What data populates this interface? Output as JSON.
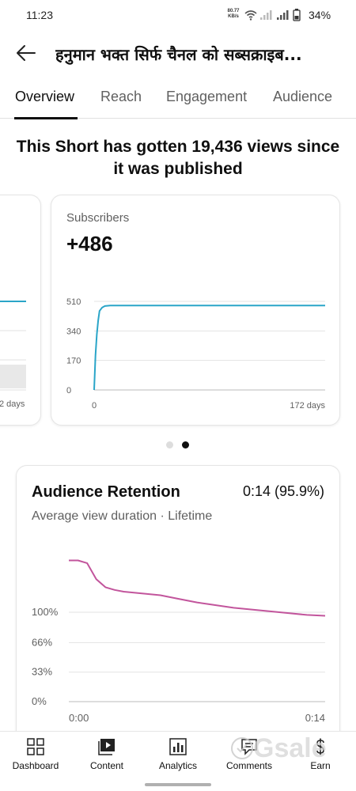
{
  "status_bar": {
    "time": "11:23",
    "net_speed_value": "80.77",
    "net_speed_unit": "KB/s",
    "battery": "34%"
  },
  "header": {
    "title": "हनुमान भक्त सिर्फ चैनल को सब्सक्राइब..."
  },
  "tabs": [
    {
      "label": "Overview",
      "active": true
    },
    {
      "label": "Reach",
      "active": false
    },
    {
      "label": "Engagement",
      "active": false
    },
    {
      "label": "Audience",
      "active": false
    }
  ],
  "headline": "This Short has gotten 19,436 views since it was published",
  "left_card": {
    "x_end_label": "2 days"
  },
  "subscribers_card": {
    "label": "Subscribers",
    "value": "+486",
    "chart_data": {
      "type": "line",
      "series": [
        {
          "values_x_days": [
            0,
            1,
            2,
            3,
            4,
            6,
            8,
            12,
            20,
            40,
            80,
            120,
            172
          ],
          "values_y": [
            0,
            200,
            320,
            400,
            455,
            475,
            483,
            486,
            486,
            486,
            486,
            486,
            486
          ]
        }
      ],
      "y_ticks": [
        "0",
        "170",
        "340",
        "510"
      ],
      "x_tick_start": "0",
      "x_tick_end": "172 days",
      "ylim": [
        0,
        510
      ],
      "xlim": [
        0,
        172
      ],
      "color": "#2aa5c8"
    }
  },
  "pager": {
    "count": 2,
    "active_index": 1
  },
  "retention_card": {
    "title": "Audience Retention",
    "value": "0:14 (95.9%)",
    "subtitle": "Average view duration · Lifetime",
    "chart_data": {
      "type": "line",
      "x": [
        0,
        0.5,
        1,
        1.5,
        2,
        2.5,
        3,
        4,
        5,
        6,
        7,
        8,
        9,
        10,
        11,
        12,
        13,
        14
      ],
      "y_percent": [
        158,
        158,
        155,
        137,
        128,
        125,
        123,
        121,
        119,
        115,
        111,
        108,
        105,
        103,
        101,
        99,
        97,
        96
      ],
      "y_ticks": [
        "0%",
        "33%",
        "66%",
        "100%"
      ],
      "x_tick_start": "0:00",
      "x_tick_end": "0:14",
      "ylim": [
        0,
        160
      ],
      "xlim": [
        0,
        14
      ],
      "color": "#c2559c"
    }
  },
  "bottom_nav": [
    {
      "label": "Dashboard",
      "icon": "dashboard-icon"
    },
    {
      "label": "Content",
      "icon": "content-icon"
    },
    {
      "label": "Analytics",
      "icon": "analytics-icon"
    },
    {
      "label": "Comments",
      "icon": "comments-icon"
    },
    {
      "label": "Earn",
      "icon": "earn-icon"
    }
  ],
  "watermark": {
    "text": "Gsale"
  }
}
